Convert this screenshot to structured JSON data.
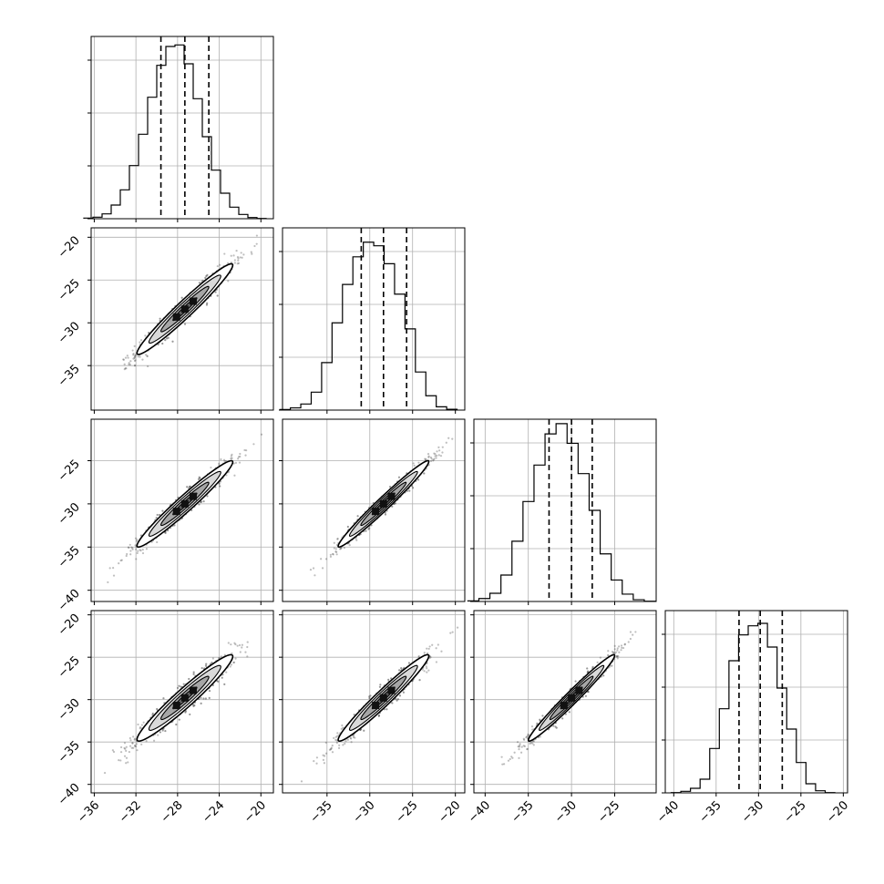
{
  "chart_data": {
    "type": "corner",
    "title": "",
    "parameters": [
      {
        "name": "",
        "median": -27.3,
        "q16": -29.6,
        "q84": -25.0,
        "hist_range": [
          -37.0,
          -19.5
        ],
        "hist_bins": [
          0.2,
          0.5,
          1.6,
          4.5,
          9.5,
          17.5,
          27.8,
          40.0,
          50.5,
          56.7,
          57.2,
          51.0,
          39.5,
          27.0,
          16.0,
          8.4,
          3.8,
          1.4,
          0.4,
          0.1
        ],
        "hist_ylim": [
          0,
          60
        ],
        "axis_range": [
          -36.3,
          -18.8
        ],
        "ticks": [
          -36,
          -32,
          -28,
          -24,
          -20
        ],
        "tick_labels": [
          "−36",
          "−32",
          "−28",
          "−24",
          "−20"
        ]
      },
      {
        "name": "",
        "median": -28.4,
        "q16": -31.0,
        "q84": -25.7,
        "hist_range": [
          -40.5,
          -19.8
        ],
        "hist_bins": [
          0.2,
          0.8,
          2.2,
          6.5,
          17.2,
          31.6,
          45.5,
          55.5,
          60.8,
          59.5,
          53.0,
          42.0,
          29.4,
          13.8,
          5.2,
          1.2,
          0.3
        ],
        "hist_ylim": [
          0,
          66
        ],
        "axis_range": [
          -40.2,
          -18.9
        ],
        "ticks": [
          -35,
          -30,
          -25,
          -20
        ],
        "tick_labels": [
          "−35",
          "−30",
          "−25",
          "−20"
        ]
      },
      {
        "name": "",
        "median": -30.0,
        "q16": -32.6,
        "q84": -27.6,
        "hist_range": [
          -42.0,
          -20.3
        ],
        "hist_bins": [
          0.2,
          1.0,
          2.8,
          9.0,
          20.5,
          34.0,
          46.4,
          57.0,
          60.5,
          53.8,
          43.5,
          31.0,
          16.2,
          7.3,
          2.5,
          0.6,
          0.1
        ],
        "hist_ylim": [
          0,
          62
        ],
        "axis_range": [
          -41.3,
          -20.2
        ],
        "ticks": [
          -40,
          -35,
          -30,
          -25
        ],
        "tick_labels": [
          "−40",
          "−35",
          "−30",
          "−25"
        ]
      },
      {
        "name": "",
        "median": -29.8,
        "q16": -32.3,
        "q84": -27.2,
        "hist_range": [
          -40.3,
          -21.0
        ],
        "hist_bins": [
          0.1,
          0.5,
          1.5,
          4.5,
          14.6,
          27.7,
          43.5,
          52.0,
          55.0,
          55.8,
          48.0,
          34.5,
          21.0,
          10.0,
          3.0,
          0.7,
          0.1
        ],
        "hist_ylim": [
          0,
          60
        ],
        "axis_range": [
          -41.0,
          -19.5
        ],
        "ticks": [
          -40,
          -35,
          -30,
          -25,
          -20
        ],
        "tick_labels": [
          "−40",
          "−35",
          "−30",
          "−25",
          "−20"
        ]
      }
    ],
    "row_axis_labels": [
      {
        "row": 1,
        "ticks": [
          -20,
          -25,
          -30,
          -35
        ],
        "tick_labels": [
          "−20",
          "−25",
          "−30",
          "−35"
        ]
      },
      {
        "row": 2,
        "ticks": [
          -25,
          -30,
          -35,
          -40
        ],
        "tick_labels": [
          "−25",
          "−30",
          "−35",
          "−40"
        ]
      },
      {
        "row": 3,
        "ticks": [
          -20,
          -25,
          -30,
          -35,
          -40
        ],
        "tick_labels": [
          "−20",
          "−25",
          "−30",
          "−35",
          "−40"
        ]
      }
    ],
    "bottom_axis_labels": [
      {
        "col": 0,
        "ticks": [
          -36,
          -32,
          -28,
          -24,
          -20
        ],
        "tick_labels": [
          "−36",
          "−32",
          "−28",
          "−24",
          "−20"
        ]
      },
      {
        "col": 1,
        "ticks": [
          -35,
          -30,
          -25,
          -20
        ],
        "tick_labels": [
          "−35",
          "−30",
          "−25",
          "−20"
        ]
      },
      {
        "col": 2,
        "ticks": [
          -40,
          -35,
          -30,
          -25
        ],
        "tick_labels": [
          "−40",
          "−35",
          "−30",
          "−25"
        ]
      },
      {
        "col": 3,
        "ticks": [
          -40,
          -35,
          -30,
          -25,
          -20
        ],
        "tick_labels": [
          "−40",
          "−35",
          "−30",
          "−25",
          "−20"
        ]
      }
    ],
    "pairs": [
      {
        "row": 1,
        "col": 0,
        "correlation": 0.97,
        "sd_x": 2.3,
        "sd_y": 2.65
      },
      {
        "row": 2,
        "col": 0,
        "correlation": 0.97,
        "sd_x": 2.3,
        "sd_y": 2.5
      },
      {
        "row": 2,
        "col": 1,
        "correlation": 0.98,
        "sd_x": 2.65,
        "sd_y": 2.5
      },
      {
        "row": 3,
        "col": 0,
        "correlation": 0.96,
        "sd_x": 2.3,
        "sd_y": 2.55
      },
      {
        "row": 3,
        "col": 1,
        "correlation": 0.97,
        "sd_x": 2.65,
        "sd_y": 2.55
      },
      {
        "row": 3,
        "col": 2,
        "correlation": 0.98,
        "sd_x": 2.5,
        "sd_y": 2.55
      }
    ],
    "contour_levels_sigma": [
      0.5,
      1.0,
      1.5,
      2.0
    ],
    "grid": true,
    "colors": {
      "lines": "#000000",
      "grid": "#b0b0b0",
      "points": "#444444"
    }
  }
}
